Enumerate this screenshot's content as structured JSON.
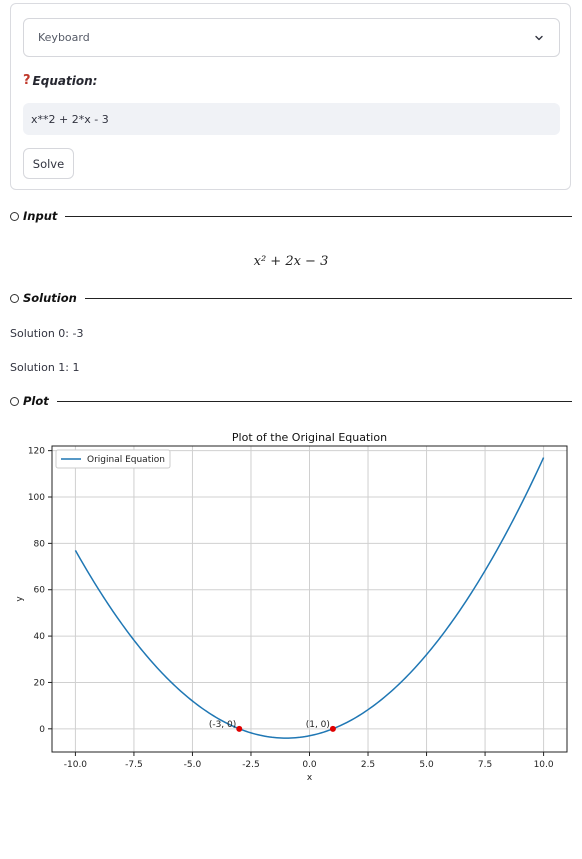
{
  "keyboard_select": {
    "value": "Keyboard"
  },
  "equation": {
    "label": "Equation:",
    "value": "x**2 + 2*x - 3"
  },
  "solve_button": {
    "label": "Solve"
  },
  "sections": {
    "input": "Input",
    "solution": "Solution",
    "plot": "Plot"
  },
  "rendered_input": "x² + 2x − 3",
  "solutions": [
    "Solution 0: -3",
    "Solution 1: 1"
  ],
  "chart_data": {
    "type": "line",
    "title": "Plot of the Original Equation",
    "xlabel": "x",
    "ylabel": "y",
    "xlim": [
      -11,
      11
    ],
    "ylim": [
      -10,
      122
    ],
    "xticks": [
      "-10.0",
      "-7.5",
      "-5.0",
      "-2.5",
      "0.0",
      "2.5",
      "5.0",
      "7.5",
      "10.0"
    ],
    "yticks": [
      "0",
      "20",
      "40",
      "60",
      "80",
      "100",
      "120"
    ],
    "grid": true,
    "legend_position": "top-left",
    "series": [
      {
        "name": "Original Equation",
        "expression": "x**2 + 2*x - 3",
        "x_range": [
          -10,
          10
        ],
        "color": "#1f77b4"
      }
    ],
    "points": [
      {
        "x": -3,
        "y": 0,
        "label": "(-3, 0)",
        "color": "#e00000"
      },
      {
        "x": 1,
        "y": 0,
        "label": "(1, 0)",
        "color": "#e00000"
      }
    ]
  }
}
